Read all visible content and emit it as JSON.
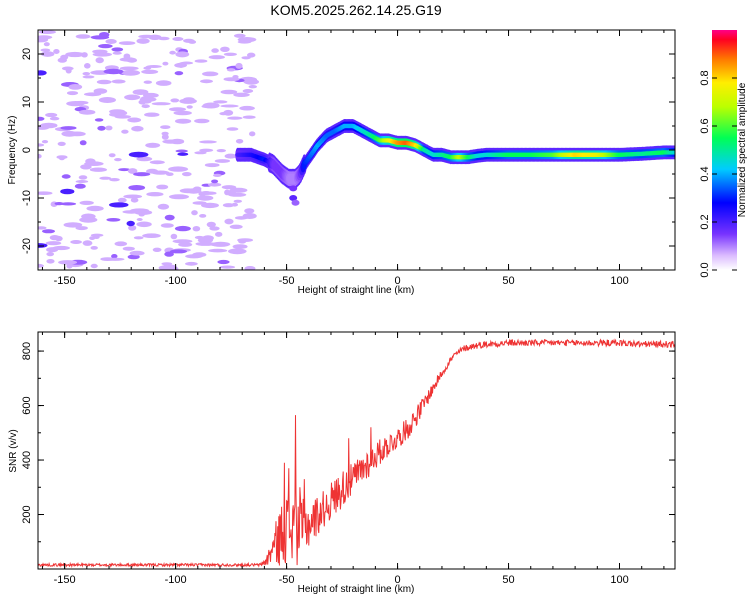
{
  "title": "KOM5.2025.262.14.25.G19",
  "chart_data": [
    {
      "type": "heatmap",
      "xlabel": "Height of straight line (km)",
      "ylabel": "Frequency (Hz)",
      "xlim": [
        -162,
        125
      ],
      "ylim": [
        -25,
        25
      ],
      "xticks": [
        -150,
        -100,
        -50,
        0,
        50,
        100
      ],
      "yticks": [
        -20,
        -10,
        0,
        10,
        20
      ],
      "colorbar": {
        "label": "Normalized spectral amplitude",
        "ticks": [
          "0.0",
          "0.2",
          "0.4",
          "0.6",
          "0.8"
        ],
        "tick_values": [
          0.0,
          0.2,
          0.4,
          0.6,
          0.8
        ],
        "range": [
          0,
          1
        ]
      },
      "ridge": {
        "x": [
          -72,
          -66,
          -60,
          -56,
          -52,
          -49,
          -46,
          -44,
          -42,
          -39,
          -36,
          -32,
          -28,
          -24,
          -20,
          -16,
          -12,
          -8,
          -4,
          0,
          4,
          8,
          12,
          16,
          20,
          24,
          28,
          32,
          36,
          40,
          45,
          50,
          60,
          70,
          80,
          90,
          100,
          110,
          120,
          125
        ],
        "freq": [
          -1,
          -1,
          -2,
          -3,
          -5,
          -6,
          -6,
          -5,
          -3,
          -1,
          1,
          3,
          4,
          5,
          5,
          4,
          3,
          2,
          2,
          1.5,
          1.5,
          1,
          0,
          -1,
          -1,
          -1.5,
          -1.5,
          -1.5,
          -1.2,
          -1,
          -1,
          -1,
          -1,
          -1,
          -1,
          -1,
          -1,
          -0.8,
          -0.5,
          -0.5
        ],
        "amp": [
          0.2,
          0.25,
          0.3,
          0.15,
          0.15,
          0.1,
          0.1,
          0.15,
          0.3,
          0.35,
          0.4,
          0.35,
          0.35,
          0.4,
          0.4,
          0.45,
          0.5,
          0.6,
          0.75,
          0.85,
          0.9,
          0.8,
          0.5,
          0.45,
          0.5,
          0.55,
          0.7,
          0.55,
          0.45,
          0.45,
          0.5,
          0.55,
          0.55,
          0.6,
          0.8,
          0.75,
          0.55,
          0.5,
          0.55,
          0.45
        ]
      },
      "noise_region_x": [
        -162,
        -65
      ]
    },
    {
      "type": "line",
      "xlabel": "Height of straight line (km)",
      "ylabel": "SNR (v/v)",
      "xlim": [
        -162,
        125
      ],
      "ylim": [
        0,
        870
      ],
      "xticks": [
        -150,
        -100,
        -50,
        0,
        50,
        100
      ],
      "yticks": [
        200,
        400,
        600,
        800
      ],
      "color": "#ee3333",
      "envelope": {
        "x": [
          -162,
          -62,
          -59,
          -56,
          -53,
          -50,
          -47,
          -44,
          -40,
          -35,
          -30,
          -25,
          -20,
          -15,
          -10,
          -5,
          0,
          5,
          10,
          15,
          20,
          25,
          30,
          35,
          40,
          50,
          60,
          70,
          80,
          90,
          100,
          110,
          125
        ],
        "base": [
          15,
          15,
          30,
          80,
          120,
          150,
          150,
          140,
          165,
          205,
          250,
          295,
          330,
          375,
          415,
          450,
          480,
          520,
          580,
          650,
          720,
          780,
          810,
          820,
          825,
          830,
          830,
          830,
          830,
          830,
          830,
          825,
          825
        ],
        "noise": [
          5,
          5,
          20,
          60,
          110,
          140,
          150,
          120,
          90,
          70,
          70,
          70,
          60,
          60,
          50,
          45,
          40,
          40,
          35,
          25,
          15,
          12,
          12,
          12,
          12,
          12,
          12,
          12,
          12,
          12,
          12,
          12,
          12
        ]
      },
      "spikes": [
        {
          "x": -51,
          "y": 390
        },
        {
          "x": -49,
          "y": 370
        },
        {
          "x": -46,
          "y": 565
        },
        {
          "x": -44,
          "y": 300
        },
        {
          "x": -42,
          "y": 330
        },
        {
          "x": -22,
          "y": 480
        },
        {
          "x": -12,
          "y": 520
        }
      ]
    }
  ]
}
